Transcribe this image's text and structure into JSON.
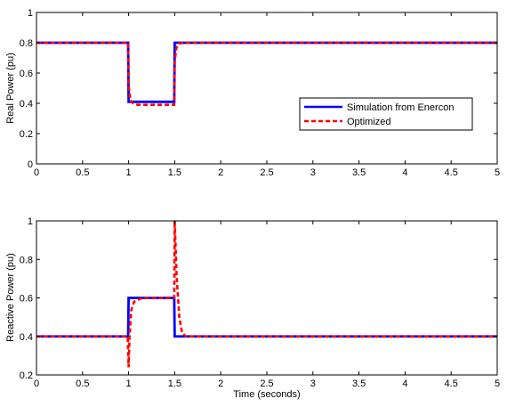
{
  "colors": {
    "simulation": "#0000ff",
    "optimized": "#ff0000",
    "axes": "#000000",
    "background": "#ffffff"
  },
  "chart_data": [
    {
      "type": "line",
      "title": "",
      "xlabel": "",
      "ylabel": "Real Power (pu)",
      "xlim": [
        0,
        5
      ],
      "ylim": [
        0,
        1
      ],
      "xticks": [
        0,
        0.5,
        1,
        1.5,
        2,
        2.5,
        3,
        3.5,
        4,
        4.5,
        5
      ],
      "xtick_labels": [
        "0",
        "0.5",
        "1",
        "1.5",
        "2",
        "2.5",
        "3",
        "3.5",
        "4",
        "4.5",
        "5"
      ],
      "yticks": [
        0,
        0.2,
        0.4,
        0.6,
        0.8,
        1
      ],
      "ytick_labels": [
        "0",
        "0.2",
        "0.4",
        "0.6",
        "0.8",
        "1"
      ],
      "grid": false,
      "legend": {
        "placement": "center-right",
        "entries": [
          "Simulation from Enercon",
          "Optimized"
        ]
      },
      "series": [
        {
          "name": "Simulation from Enercon",
          "style": "solid",
          "color": "#0000ff",
          "x": [
            0,
            0.995,
            1.0,
            1.495,
            1.5,
            5
          ],
          "y": [
            0.8,
            0.8,
            0.41,
            0.41,
            0.8,
            0.8
          ]
        },
        {
          "name": "Optimized",
          "style": "dashed",
          "color": "#ff0000",
          "x": [
            0,
            0.995,
            1.0,
            1.02,
            1.05,
            1.1,
            1.495,
            1.5,
            1.52,
            1.55,
            1.6,
            5
          ],
          "y": [
            0.8,
            0.8,
            0.52,
            0.42,
            0.4,
            0.39,
            0.39,
            0.68,
            0.77,
            0.795,
            0.8,
            0.8
          ]
        }
      ]
    },
    {
      "type": "line",
      "title": "",
      "xlabel": "Time (seconds)",
      "ylabel": "Reactive Power (pu)",
      "xlim": [
        0,
        5
      ],
      "ylim": [
        0.2,
        1
      ],
      "xticks": [
        0,
        0.5,
        1,
        1.5,
        2,
        2.5,
        3,
        3.5,
        4,
        4.5,
        5
      ],
      "xtick_labels": [
        "0",
        "0.5",
        "1",
        "1.5",
        "2",
        "2.5",
        "3",
        "3.5",
        "4",
        "4.5",
        "5"
      ],
      "yticks": [
        0.2,
        0.4,
        0.6,
        0.8,
        1
      ],
      "ytick_labels": [
        "0.2",
        "0.4",
        "0.6",
        "0.8",
        "1"
      ],
      "grid": false,
      "series": [
        {
          "name": "Simulation from Enercon",
          "style": "solid",
          "color": "#0000ff",
          "x": [
            0,
            0.995,
            1.0,
            1.495,
            1.5,
            5
          ],
          "y": [
            0.4,
            0.4,
            0.6,
            0.6,
            0.4,
            0.4
          ]
        },
        {
          "name": "Optimized",
          "style": "dashed",
          "color": "#ff0000",
          "x": [
            0,
            0.99,
            1.0,
            1.01,
            1.03,
            1.06,
            1.1,
            1.15,
            1.495,
            1.5,
            1.52,
            1.55,
            1.58,
            1.62,
            5
          ],
          "y": [
            0.4,
            0.4,
            0.24,
            0.4,
            0.54,
            0.58,
            0.59,
            0.6,
            0.6,
            1.0,
            0.72,
            0.5,
            0.42,
            0.4,
            0.4
          ]
        }
      ]
    }
  ]
}
